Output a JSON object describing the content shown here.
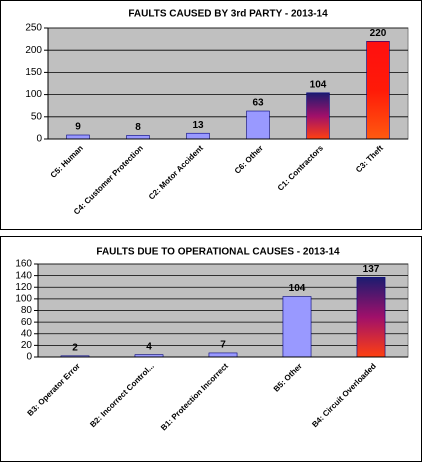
{
  "chart_data": [
    {
      "type": "bar",
      "title": "FAULTS CAUSED BY 3rd PARTY -   2013-14",
      "categories": [
        "C5: Human",
        "C4: Customer Protection",
        "C2: Motor Accident",
        "C6: Other",
        "C1: Contractors",
        "C3: Theft"
      ],
      "values": [
        9,
        8,
        13,
        63,
        104,
        220
      ],
      "colors": [
        "#9999ff",
        "#9999ff",
        "#9999ff",
        "#9999ff",
        [
          "#1c1c70",
          "#a0106a",
          "#ff4010"
        ],
        [
          "#ff1010",
          "#ff1a08",
          "#ff5a10"
        ]
      ],
      "ylim": [
        0,
        250
      ],
      "yticks": [
        0,
        50,
        100,
        150,
        200,
        250
      ],
      "grid": true
    },
    {
      "type": "bar",
      "title": "FAULTS DUE TO OPERATIONAL CAUSES   -   2013-14",
      "categories": [
        "B3: Operator Error",
        "B2: Incorrect Control...",
        "B1: Protection Incorrect",
        "B5: Other",
        "B4: Circuit Overloaded"
      ],
      "values": [
        2,
        4,
        7,
        104,
        137
      ],
      "colors": [
        "#9999ff",
        "#9999ff",
        "#9999ff",
        "#9999ff",
        [
          "#1c1c70",
          "#a0106a",
          "#ff4010"
        ]
      ],
      "ylim": [
        0,
        160
      ],
      "yticks": [
        0,
        20,
        40,
        60,
        80,
        100,
        120,
        140,
        160
      ],
      "grid": true
    }
  ]
}
